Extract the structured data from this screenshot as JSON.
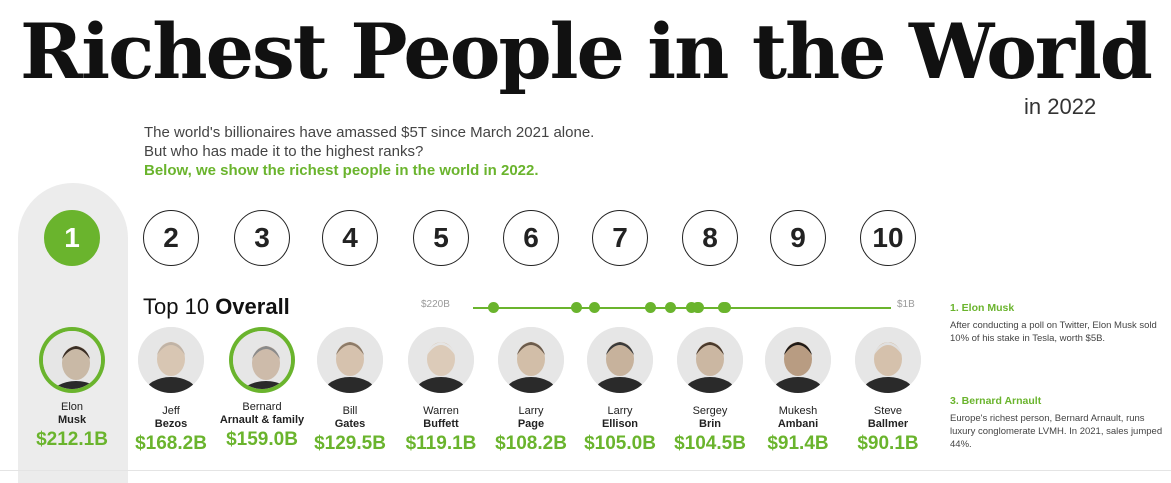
{
  "header": {
    "title": "Richest People in the World",
    "year": "in 2022"
  },
  "intro": {
    "line1": "The world's billionaires have amassed $5T since March 2021 alone.",
    "line2": "But who has made it to the highest ranks?",
    "highlight": "Below, we show the richest people in the world in 2022."
  },
  "ranks": [
    "1",
    "2",
    "3",
    "4",
    "5",
    "6",
    "7",
    "8",
    "9",
    "10"
  ],
  "section": {
    "prefix": "Top 10",
    "bold": "Overall"
  },
  "scale": {
    "max_label": "$220B",
    "min_label": "$1B",
    "max": 220,
    "min": 1
  },
  "people": [
    {
      "first": "Elon",
      "last": "Musk",
      "worth": "$212.1B",
      "value": 212.1
    },
    {
      "first": "Jeff",
      "last": "Bezos",
      "worth": "$168.2B",
      "value": 168.2
    },
    {
      "first": "Bernard",
      "last": "Arnault & family",
      "worth": "$159.0B",
      "value": 159.0
    },
    {
      "first": "Bill",
      "last": "Gates",
      "worth": "$129.5B",
      "value": 129.5
    },
    {
      "first": "Warren",
      "last": "Buffett",
      "worth": "$119.1B",
      "value": 119.1
    },
    {
      "first": "Larry",
      "last": "Page",
      "worth": "$108.2B",
      "value": 108.2
    },
    {
      "first": "Larry",
      "last": "Ellison",
      "worth": "$105.0B",
      "value": 105.0
    },
    {
      "first": "Sergey",
      "last": "Brin",
      "worth": "$104.5B",
      "value": 104.5
    },
    {
      "first": "Mukesh",
      "last": "Ambani",
      "worth": "$91.4B",
      "value": 91.4
    },
    {
      "first": "Steve",
      "last": "Ballmer",
      "worth": "$90.1B",
      "value": 90.1
    }
  ],
  "notes": [
    {
      "title": "1. Elon Musk",
      "text": "After conducting a poll on Twitter, Elon Musk sold 10% of his stake in Tesla, worth $5B."
    },
    {
      "title": "3. Bernard Arnault",
      "text": "Europe's richest person, Bernard Arnault, runs luxury conglomerate LVMH. In 2021, sales jumped 44%."
    }
  ],
  "colors": {
    "accent": "#6ab42d",
    "panel": "#ececec"
  }
}
